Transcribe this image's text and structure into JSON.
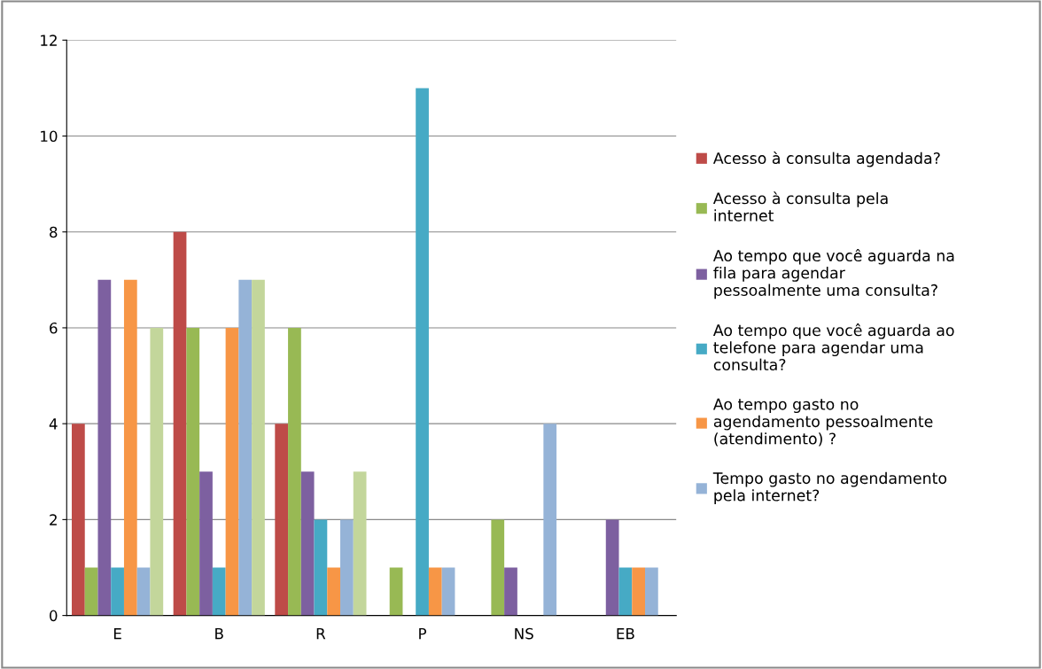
{
  "chart_data": {
    "type": "bar",
    "categories": [
      "E",
      "B",
      "R",
      "P",
      "NS",
      "EB"
    ],
    "series": [
      {
        "name": "Acesso à consulta agendada?",
        "color": "#be4b48",
        "values": [
          4,
          8,
          4,
          0,
          0,
          0
        ]
      },
      {
        "name": "Acesso à consulta pela internet",
        "color": "#98b954",
        "values": [
          1,
          6,
          6,
          1,
          2,
          0
        ]
      },
      {
        "name": "Ao tempo que você aguarda na fila para agendar pessoalmente uma consulta?",
        "color": "#7d60a0",
        "values": [
          7,
          3,
          3,
          0,
          1,
          2
        ]
      },
      {
        "name": "Ao tempo que você aguarda ao telefone para agendar uma consulta?",
        "color": "#46aac5",
        "values": [
          1,
          1,
          2,
          11,
          0,
          1
        ]
      },
      {
        "name": "Ao tempo gasto no agendamento pessoalmente (atendimento) ?",
        "color": "#f79646",
        "values": [
          7,
          6,
          1,
          1,
          0,
          1
        ]
      },
      {
        "name": "Tempo gasto no agendamento pela internet?",
        "color": "#95b3d7",
        "values": [
          1,
          7,
          2,
          1,
          4,
          1
        ]
      },
      {
        "color": "#c3d69b",
        "values": [
          6,
          7,
          3,
          0,
          0,
          0
        ]
      }
    ],
    "ylim": [
      0,
      12
    ],
    "yticks": [
      0,
      2,
      4,
      6,
      8,
      10,
      12
    ],
    "grid": "y",
    "legend": "right"
  }
}
